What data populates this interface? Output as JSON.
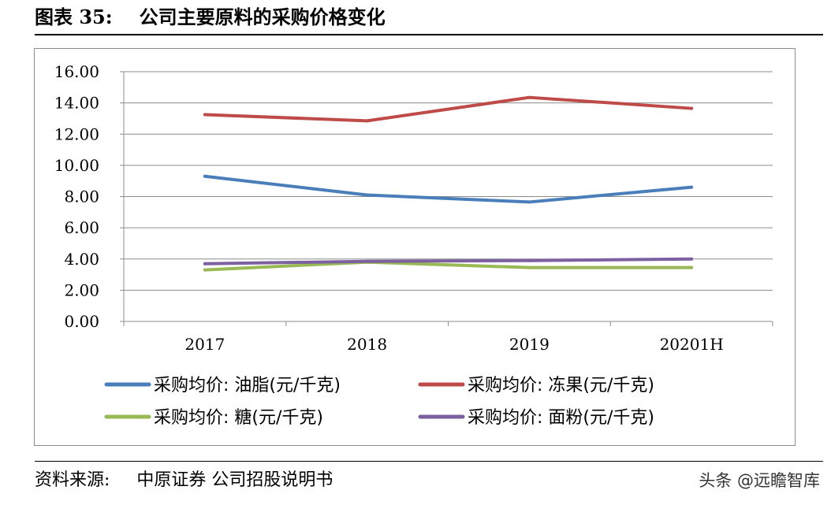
{
  "figure": {
    "label": "图表 35:",
    "title": "公司主要原料的采购价格变化"
  },
  "source": {
    "label": "资料来源:",
    "text": "中原证券 公司招股说明书"
  },
  "watermark": "头条 @远瞻智库",
  "chart_data": {
    "type": "line",
    "categories": [
      "2017",
      "2018",
      "2019",
      "20201H"
    ],
    "ylim": [
      0,
      16
    ],
    "yticks": [
      "0.00",
      "2.00",
      "4.00",
      "6.00",
      "8.00",
      "10.00",
      "12.00",
      "14.00",
      "16.00"
    ],
    "grid": true,
    "legend_position": "bottom",
    "series": [
      {
        "name": "采购均价: 油脂(元/千克)",
        "color": "#4a7ebb",
        "values": [
          9.3,
          8.1,
          7.65,
          8.6
        ]
      },
      {
        "name": "采购均价: 冻果(元/千克)",
        "color": "#be4b48",
        "values": [
          13.25,
          12.85,
          14.35,
          13.65
        ]
      },
      {
        "name": "采购均价: 糖(元/千克)",
        "color": "#98b954",
        "values": [
          3.3,
          3.8,
          3.45,
          3.45
        ]
      },
      {
        "name": "采购均价: 面粉(元/千克)",
        "color": "#7d60a0",
        "values": [
          3.7,
          3.85,
          3.9,
          4.0
        ]
      }
    ]
  }
}
